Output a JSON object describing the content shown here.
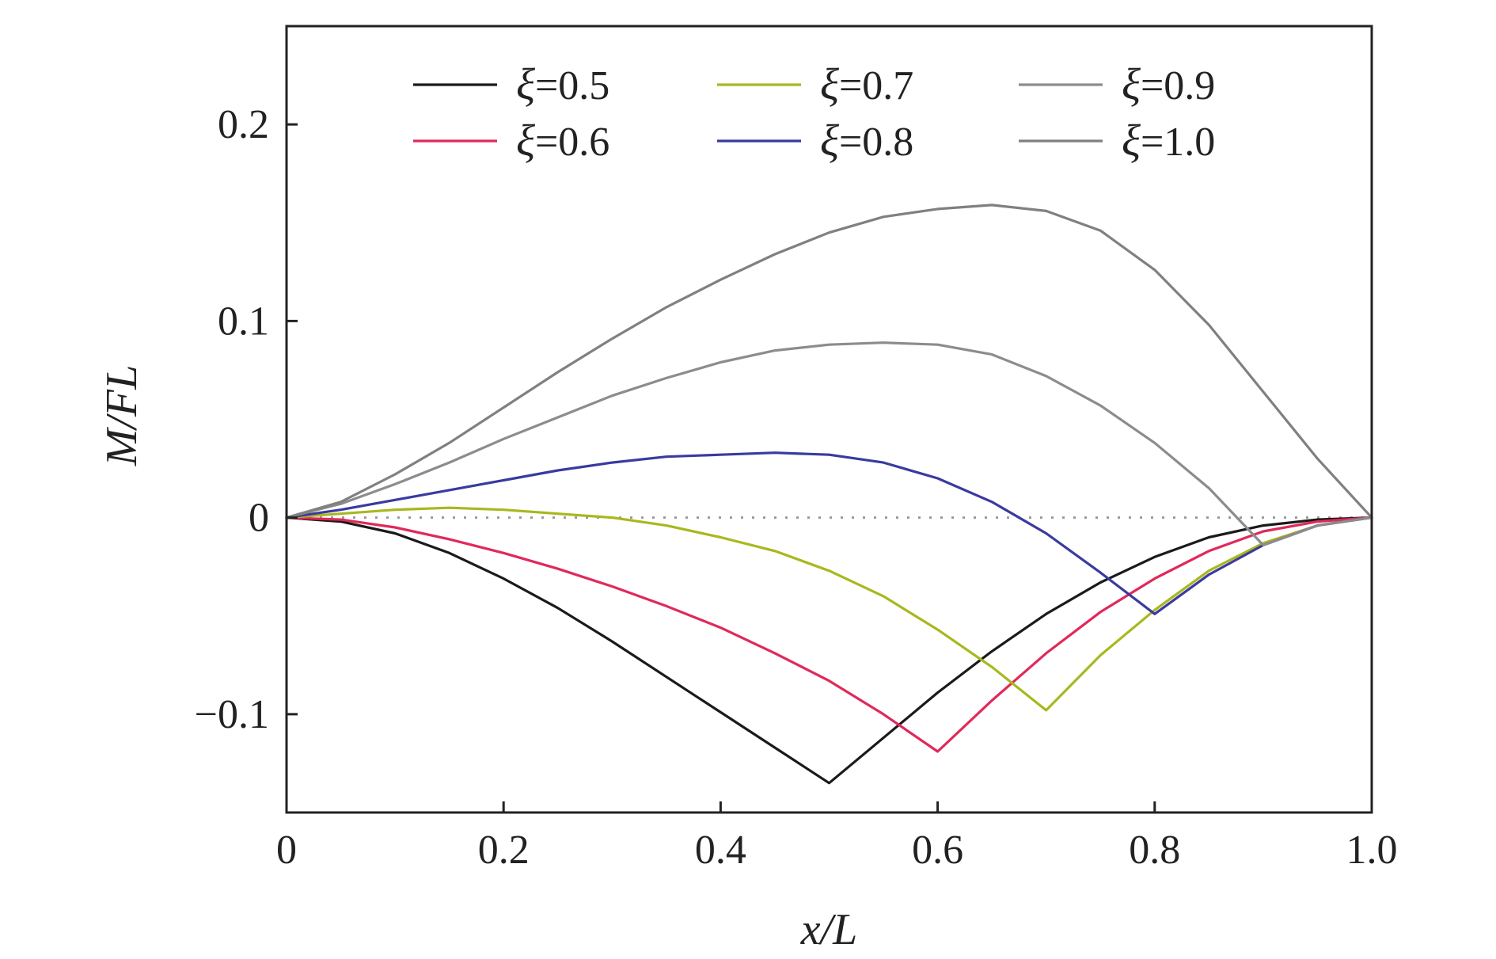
{
  "chart_data": {
    "type": "line",
    "title": "",
    "xlabel": "x/L",
    "ylabel": "M/FL",
    "xlim": [
      0,
      1.0
    ],
    "ylim": [
      -0.15,
      0.25
    ],
    "grid": false,
    "legend_position": "top",
    "xticks": [
      0,
      0.2,
      0.4,
      0.6,
      0.8,
      1.0
    ],
    "xtick_labels": [
      "0",
      "0.2",
      "0.4",
      "0.6",
      "0.8",
      "1.0"
    ],
    "yticks": [
      -0.1,
      0,
      0.1,
      0.2
    ],
    "ytick_labels": [
      "−0.1",
      "0",
      "0.1",
      "0.2"
    ],
    "reference_line": {
      "y": 0,
      "style": "dotted",
      "color": "#999999"
    },
    "legend_symbol": "ξ",
    "series": [
      {
        "name": "ξ=0.5",
        "label_value": "=0.5",
        "color": "#1a1a1a",
        "x": [
          0,
          0.05,
          0.1,
          0.15,
          0.2,
          0.25,
          0.3,
          0.35,
          0.4,
          0.45,
          0.5,
          0.55,
          0.6,
          0.65,
          0.7,
          0.75,
          0.8,
          0.85,
          0.9,
          0.95,
          1.0
        ],
        "y": [
          0,
          -0.002,
          -0.008,
          -0.018,
          -0.031,
          -0.046,
          -0.063,
          -0.081,
          -0.099,
          -0.117,
          -0.135,
          -0.112,
          -0.089,
          -0.068,
          -0.049,
          -0.033,
          -0.02,
          -0.01,
          -0.004,
          -0.001,
          0
        ]
      },
      {
        "name": "ξ=0.6",
        "label_value": "=0.6",
        "color": "#e0295a",
        "x": [
          0,
          0.05,
          0.1,
          0.15,
          0.2,
          0.25,
          0.3,
          0.35,
          0.4,
          0.45,
          0.5,
          0.55,
          0.6,
          0.65,
          0.7,
          0.75,
          0.8,
          0.85,
          0.9,
          0.95,
          1.0
        ],
        "y": [
          0,
          -0.001,
          -0.005,
          -0.011,
          -0.018,
          -0.026,
          -0.035,
          -0.045,
          -0.056,
          -0.069,
          -0.083,
          -0.1,
          -0.119,
          -0.093,
          -0.069,
          -0.048,
          -0.031,
          -0.017,
          -0.007,
          -0.002,
          0
        ]
      },
      {
        "name": "ξ=0.7",
        "label_value": "=0.7",
        "color": "#a8b81e",
        "x": [
          0,
          0.05,
          0.1,
          0.15,
          0.2,
          0.25,
          0.3,
          0.35,
          0.4,
          0.45,
          0.5,
          0.55,
          0.6,
          0.65,
          0.7,
          0.75,
          0.8,
          0.85,
          0.9,
          0.95,
          1.0
        ],
        "y": [
          0,
          0.002,
          0.004,
          0.005,
          0.004,
          0.002,
          0.0,
          -0.004,
          -0.01,
          -0.017,
          -0.027,
          -0.04,
          -0.057,
          -0.076,
          -0.098,
          -0.07,
          -0.047,
          -0.027,
          -0.013,
          -0.004,
          0
        ]
      },
      {
        "name": "ξ=0.8",
        "label_value": "=0.8",
        "color": "#3a3aa0",
        "x": [
          0,
          0.05,
          0.1,
          0.15,
          0.2,
          0.25,
          0.3,
          0.35,
          0.4,
          0.45,
          0.5,
          0.55,
          0.6,
          0.65,
          0.7,
          0.75,
          0.8,
          0.85,
          0.9,
          0.95,
          1.0
        ],
        "y": [
          0,
          0.004,
          0.009,
          0.014,
          0.019,
          0.024,
          0.028,
          0.031,
          0.032,
          0.033,
          0.032,
          0.028,
          0.02,
          0.008,
          -0.008,
          -0.028,
          -0.049,
          -0.029,
          -0.014,
          -0.004,
          0
        ]
      },
      {
        "name": "ξ=0.9",
        "label_value": "=0.9",
        "color": "#8c8c8c",
        "x": [
          0,
          0.05,
          0.1,
          0.15,
          0.2,
          0.25,
          0.3,
          0.35,
          0.4,
          0.45,
          0.5,
          0.55,
          0.6,
          0.65,
          0.7,
          0.75,
          0.8,
          0.85,
          0.9,
          0.95,
          1.0
        ],
        "y": [
          0,
          0.007,
          0.017,
          0.028,
          0.04,
          0.051,
          0.062,
          0.071,
          0.079,
          0.085,
          0.088,
          0.089,
          0.088,
          0.083,
          0.072,
          0.057,
          0.038,
          0.015,
          -0.014,
          -0.004,
          0
        ]
      },
      {
        "name": "ξ=1.0",
        "label_value": "=1.0",
        "color": "#808080",
        "x": [
          0,
          0.05,
          0.1,
          0.15,
          0.2,
          0.25,
          0.3,
          0.35,
          0.4,
          0.45,
          0.5,
          0.55,
          0.6,
          0.65,
          0.7,
          0.75,
          0.8,
          0.85,
          0.9,
          0.95,
          1.0
        ],
        "y": [
          0,
          0.008,
          0.022,
          0.038,
          0.056,
          0.074,
          0.091,
          0.107,
          0.121,
          0.134,
          0.145,
          0.153,
          0.157,
          0.159,
          0.156,
          0.146,
          0.126,
          0.098,
          0.064,
          0.03,
          0
        ]
      }
    ]
  }
}
